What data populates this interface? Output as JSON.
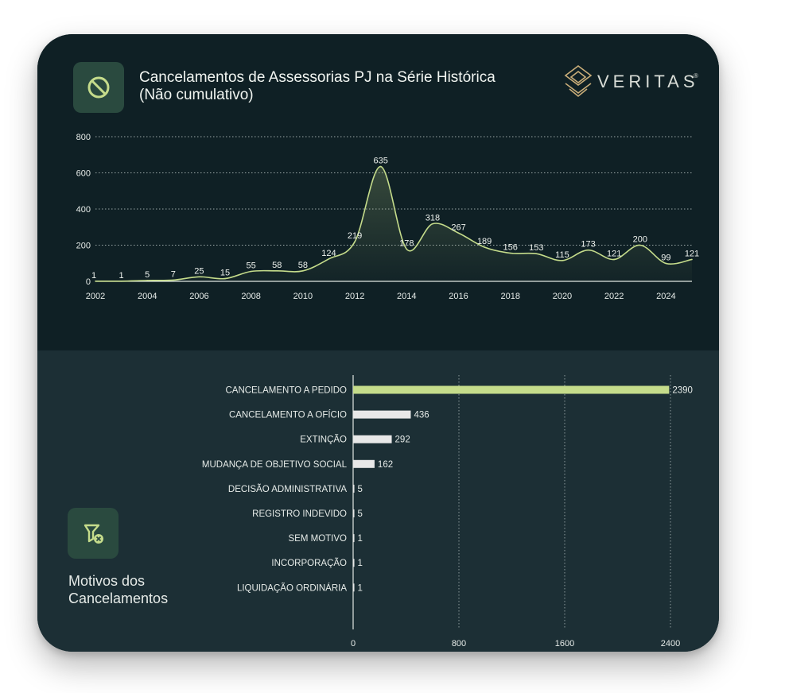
{
  "header": {
    "title_line1": "Cancelamentos de Assessorias PJ na Série Histórica",
    "title_line2": "(Não cumulativo)",
    "icon": "prohibited-icon",
    "logo_text": "VERITAS",
    "logo_mark": "®"
  },
  "bottom_panel": {
    "icon": "cancel-filter-icon",
    "title_line1": "Motivos dos",
    "title_line2": "Cancelamentos"
  },
  "colors": {
    "accent": "#c5dc8b",
    "bar_default": "#e8e8e8",
    "card_top": "#0f2025",
    "card_bottom": "#1c2f35",
    "text": "#e6ebe8"
  },
  "chart_data": [
    {
      "type": "area",
      "title": "Cancelamentos de Assessorias PJ na Série Histórica (Não cumulativo)",
      "x": [
        2002,
        2003,
        2004,
        2005,
        2006,
        2007,
        2008,
        2009,
        2010,
        2011,
        2012,
        2013,
        2014,
        2015,
        2016,
        2017,
        2018,
        2019,
        2020,
        2021,
        2022,
        2023,
        2024,
        2025
      ],
      "values": [
        1,
        1,
        5,
        7,
        25,
        15,
        55,
        58,
        58,
        124,
        219,
        635,
        178,
        318,
        267,
        189,
        156,
        153,
        115,
        173,
        121,
        200,
        99,
        121
      ],
      "data_labels": [
        "1",
        "1",
        "5",
        "7",
        "25",
        "15",
        "55",
        "58",
        "58",
        "124",
        "219",
        "635",
        "178",
        "318",
        "267",
        "189",
        "156",
        "153",
        "115",
        "173",
        "121",
        "200",
        "99",
        "121"
      ],
      "x_ticks": [
        "2002",
        "2004",
        "2006",
        "2008",
        "2010",
        "2012",
        "2014",
        "2016",
        "2018",
        "2020",
        "2022",
        "2024"
      ],
      "x_tick_values": [
        2002,
        2004,
        2006,
        2008,
        2010,
        2012,
        2014,
        2016,
        2018,
        2020,
        2022,
        2024
      ],
      "y_ticks": [
        "0",
        "200",
        "400",
        "600",
        "800"
      ],
      "y_tick_values": [
        0,
        200,
        400,
        600,
        800
      ],
      "xlim": [
        2002,
        2025
      ],
      "ylim": [
        0,
        800
      ],
      "grid": "horizontal-dotted"
    },
    {
      "type": "bar",
      "orientation": "horizontal",
      "categories": [
        "CANCELAMENTO A PEDIDO",
        "CANCELAMENTO A OFÍCIO",
        "EXTINÇÃO",
        "MUDANÇA DE OBJETIVO SOCIAL",
        "DECISÃO ADMINISTRATIVA",
        "REGISTRO INDEVIDO",
        "SEM MOTIVO",
        "INCORPORAÇÃO",
        "LIQUIDAÇÃO ORDINÁRIA"
      ],
      "values": [
        2390,
        436,
        292,
        162,
        5,
        5,
        1,
        1,
        1
      ],
      "value_labels": [
        "2390",
        "436",
        "292",
        "162",
        "5",
        "5",
        "1",
        "1",
        "1"
      ],
      "highlight_index": 0,
      "x_ticks": [
        "0",
        "800",
        "1600",
        "2400"
      ],
      "x_tick_values": [
        0,
        800,
        1600,
        2400
      ],
      "xlim": [
        0,
        2400
      ],
      "grid": "vertical-dotted"
    }
  ]
}
